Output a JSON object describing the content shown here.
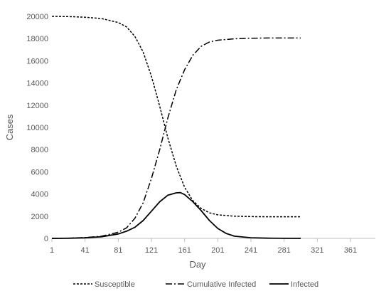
{
  "chart_data": {
    "type": "line",
    "title": "",
    "xlabel": "Day",
    "ylabel": "Cases",
    "xlim": [
      1,
      391
    ],
    "ylim": [
      0,
      20000
    ],
    "x_ticks": [
      "1",
      "41",
      "81",
      "121",
      "161",
      "201",
      "241",
      "281",
      "321",
      "361"
    ],
    "y_ticks": [
      "0",
      "2000",
      "4000",
      "6000",
      "8000",
      "10000",
      "12000",
      "14000",
      "16000",
      "18000",
      "20000"
    ],
    "grid": false,
    "legend_position": "bottom",
    "series": [
      {
        "name": "Susceptible",
        "line_style": "dashed",
        "color": "#000000",
        "points": [
          [
            1,
            20000
          ],
          [
            21,
            19980
          ],
          [
            41,
            19920
          ],
          [
            61,
            19800
          ],
          [
            81,
            19450
          ],
          [
            91,
            19050
          ],
          [
            101,
            18200
          ],
          [
            111,
            16800
          ],
          [
            121,
            14600
          ],
          [
            131,
            11900
          ],
          [
            141,
            9000
          ],
          [
            151,
            6500
          ],
          [
            161,
            4600
          ],
          [
            171,
            3400
          ],
          [
            181,
            2700
          ],
          [
            191,
            2300
          ],
          [
            201,
            2120
          ],
          [
            221,
            2000
          ],
          [
            241,
            1960
          ],
          [
            261,
            1950
          ],
          [
            281,
            1950
          ],
          [
            301,
            1950
          ]
        ]
      },
      {
        "name": "Cumulative Infected",
        "line_style": "dash-dot",
        "color": "#000000",
        "points": [
          [
            1,
            0
          ],
          [
            21,
            20
          ],
          [
            41,
            80
          ],
          [
            61,
            200
          ],
          [
            81,
            550
          ],
          [
            91,
            950
          ],
          [
            101,
            1800
          ],
          [
            111,
            3200
          ],
          [
            121,
            5400
          ],
          [
            131,
            8000
          ],
          [
            141,
            10900
          ],
          [
            151,
            13400
          ],
          [
            161,
            15200
          ],
          [
            171,
            16500
          ],
          [
            181,
            17300
          ],
          [
            191,
            17700
          ],
          [
            201,
            17850
          ],
          [
            221,
            17980
          ],
          [
            241,
            18030
          ],
          [
            261,
            18050
          ],
          [
            281,
            18050
          ],
          [
            301,
            18050
          ]
        ]
      },
      {
        "name": "Infected",
        "line_style": "solid",
        "color": "#000000",
        "points": [
          [
            1,
            0
          ],
          [
            21,
            15
          ],
          [
            41,
            50
          ],
          [
            61,
            150
          ],
          [
            81,
            400
          ],
          [
            91,
            650
          ],
          [
            101,
            1000
          ],
          [
            111,
            1600
          ],
          [
            121,
            2450
          ],
          [
            131,
            3300
          ],
          [
            141,
            3900
          ],
          [
            151,
            4100
          ],
          [
            156,
            4120
          ],
          [
            161,
            3950
          ],
          [
            171,
            3300
          ],
          [
            181,
            2500
          ],
          [
            191,
            1600
          ],
          [
            201,
            900
          ],
          [
            211,
            450
          ],
          [
            221,
            200
          ],
          [
            241,
            60
          ],
          [
            261,
            20
          ],
          [
            281,
            5
          ],
          [
            301,
            0
          ]
        ]
      }
    ]
  }
}
